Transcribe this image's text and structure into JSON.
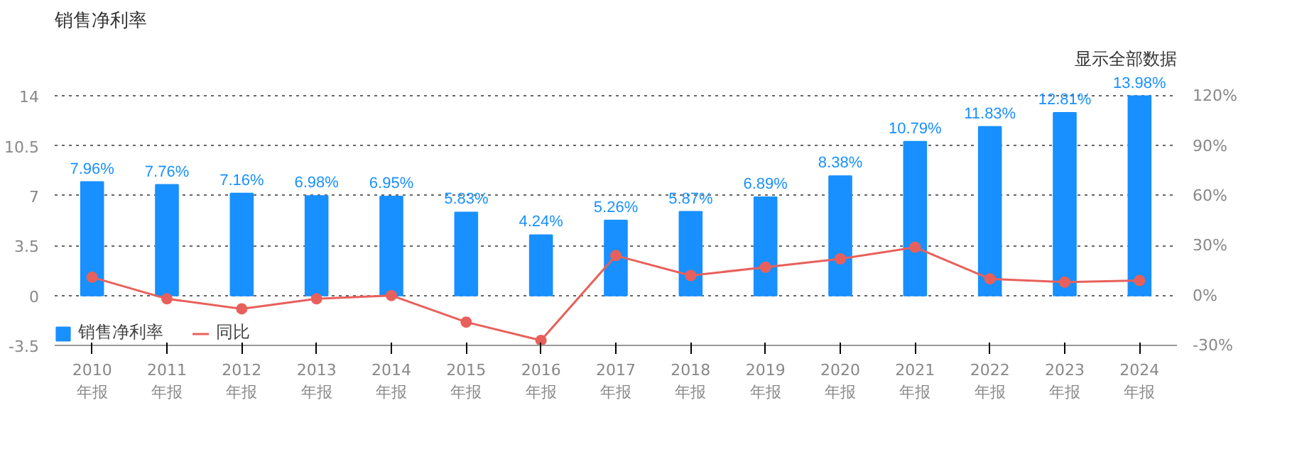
{
  "chart_data": {
    "type": "bar",
    "title": "销售净利率",
    "annotations": [
      "显示全部数据"
    ],
    "categories": [
      "2010\n年报",
      "2011\n年报",
      "2012\n年报",
      "2013\n年报",
      "2014\n年报",
      "2015\n年报",
      "2016\n年报",
      "2017\n年报",
      "2018\n年报",
      "2019\n年报",
      "2020\n年报",
      "2021\n年报",
      "2022\n年报",
      "2023\n年报",
      "2024\n年报"
    ],
    "series": [
      {
        "name": "销售净利率",
        "type": "bar",
        "color": "#1890ff",
        "values": [
          7.96,
          7.76,
          7.16,
          6.98,
          6.95,
          5.83,
          4.24,
          5.26,
          5.87,
          6.89,
          8.38,
          10.79,
          11.83,
          12.81,
          13.98
        ],
        "value_labels": [
          "7.96%",
          "7.76%",
          "7.16%",
          "6.98%",
          "6.95%",
          "5.83%",
          "4.24%",
          "5.26%",
          "5.87%",
          "6.89%",
          "8.38%",
          "10.79%",
          "11.83%",
          "12.81%",
          "13.98%"
        ]
      },
      {
        "name": "同比",
        "type": "line",
        "axis": "y2",
        "color": "#e8605b",
        "values": [
          11,
          -2,
          -8,
          -2,
          0,
          -16,
          -27,
          24,
          12,
          17,
          22,
          29,
          10,
          8,
          9
        ]
      }
    ],
    "ylim": [
      -3.5,
      14
    ],
    "yticks": [
      -3.5,
      0,
      3.5,
      7,
      10.5,
      14
    ],
    "y2lim": [
      -30,
      120
    ],
    "y2ticks": [
      {
        "value": -30,
        "label": "-30%"
      },
      {
        "value": 0,
        "label": "0%"
      },
      {
        "value": 30,
        "label": "30%"
      },
      {
        "value": 60,
        "label": "60%"
      },
      {
        "value": 90,
        "label": "90%"
      },
      {
        "value": 120,
        "label": "120%"
      }
    ],
    "grid": "y",
    "legend": "bottom left",
    "marker": "circle",
    "line_style": "solid"
  }
}
